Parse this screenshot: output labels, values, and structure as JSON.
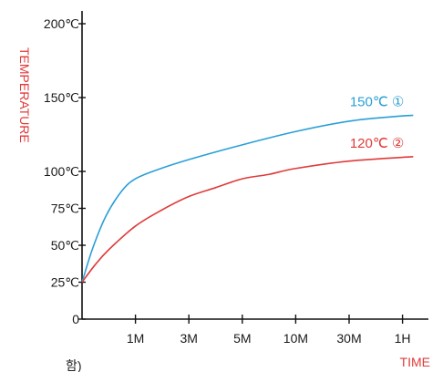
{
  "chart_data": {
    "type": "line",
    "xlabel": "TIME",
    "ylabel": "TEMPERATURE",
    "x_categories": [
      "1M",
      "3M",
      "5M",
      "10M",
      "30M",
      "1H"
    ],
    "y_ticks": [
      {
        "value": 0,
        "label": "0"
      },
      {
        "value": 25,
        "label": "25℃"
      },
      {
        "value": 50,
        "label": "50℃"
      },
      {
        "value": 75,
        "label": "75℃"
      },
      {
        "value": 100,
        "label": "100℃"
      },
      {
        "value": 150,
        "label": "150℃"
      },
      {
        "value": 200,
        "label": "200℃"
      }
    ],
    "ylim": [
      0,
      200
    ],
    "x_range": [
      0,
      6.2
    ],
    "grid": false,
    "series": [
      {
        "name": "150℃ ①",
        "color": "#2a9fd6",
        "points": [
          [
            0,
            25
          ],
          [
            0.2,
            48
          ],
          [
            0.45,
            70
          ],
          [
            0.75,
            87
          ],
          [
            1.0,
            95
          ],
          [
            1.4,
            101
          ],
          [
            2.0,
            108
          ],
          [
            3.0,
            118
          ],
          [
            4.0,
            127
          ],
          [
            5.0,
            134
          ],
          [
            5.8,
            137
          ],
          [
            6.2,
            138
          ]
        ]
      },
      {
        "name": "120℃ ②",
        "color": "#e03a3a",
        "points": [
          [
            0,
            25
          ],
          [
            0.25,
            37
          ],
          [
            0.5,
            47
          ],
          [
            1.0,
            63
          ],
          [
            1.5,
            74
          ],
          [
            2.0,
            83
          ],
          [
            2.5,
            89
          ],
          [
            3.0,
            95
          ],
          [
            3.5,
            98
          ],
          [
            4.0,
            102
          ],
          [
            5.0,
            107
          ],
          [
            6.2,
            110
          ]
        ]
      }
    ]
  },
  "footer_fragment": "함)"
}
